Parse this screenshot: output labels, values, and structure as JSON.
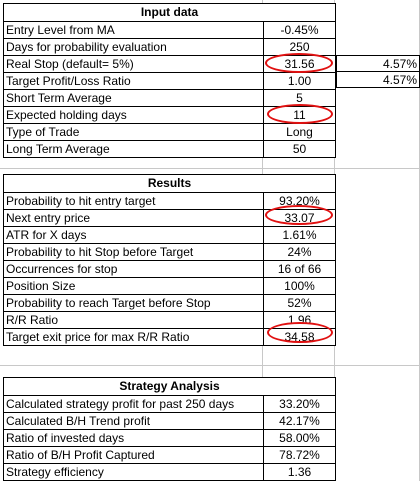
{
  "input_data": {
    "title": "Input data",
    "rows": [
      {
        "label": "Entry Level from MA",
        "value": "-0.45%"
      },
      {
        "label": "Days for probability evaluation",
        "value": "250"
      },
      {
        "label": "Real Stop (default= 5%)",
        "value": "31.56"
      },
      {
        "label": "Target Profit/Loss Ratio",
        "value": "1.00"
      },
      {
        "label": "Short Term Average",
        "value": "5"
      },
      {
        "label": "Expected holding days",
        "value": "11"
      },
      {
        "label": "Type of Trade",
        "value": "Long"
      },
      {
        "label": "Long Term Average",
        "value": "50"
      }
    ],
    "side_values": [
      "4.57%",
      "4.57%"
    ]
  },
  "results": {
    "title": "Results",
    "rows": [
      {
        "label": "Probability to hit entry target",
        "value": "93.20%"
      },
      {
        "label": "Next entry price",
        "value": "33.07"
      },
      {
        "label": "ATR for X days",
        "value": "1.61%"
      },
      {
        "label": "Probability to hit Stop before Target",
        "value": "24%"
      },
      {
        "label": "Occurrences for stop",
        "value": "16 of 66"
      },
      {
        "label": "Position Size",
        "value": "100%"
      },
      {
        "label": "Probability to reach Target before Stop",
        "value": "52%"
      },
      {
        "label": "R/R Ratio",
        "value": "1.96"
      },
      {
        "label": "Target exit price for max R/R Ratio",
        "value": "34.58"
      }
    ]
  },
  "strategy": {
    "title": "Strategy Analysis",
    "rows": [
      {
        "label": "Calculated strategy profit for past 250 days",
        "value": "33.20%"
      },
      {
        "label": "Calculated B/H Trend profit",
        "value": "42.17%"
      },
      {
        "label": "Ratio of invested days",
        "value": "58.00%"
      },
      {
        "label": "Ratio of B/H Profit Captured",
        "value": "78.72%"
      },
      {
        "label": "Strategy efficiency",
        "value": "1.36"
      }
    ]
  },
  "colors": {
    "highlight_oval": "#e01010",
    "gridline": "#c8c8c8",
    "border": "#000000"
  }
}
